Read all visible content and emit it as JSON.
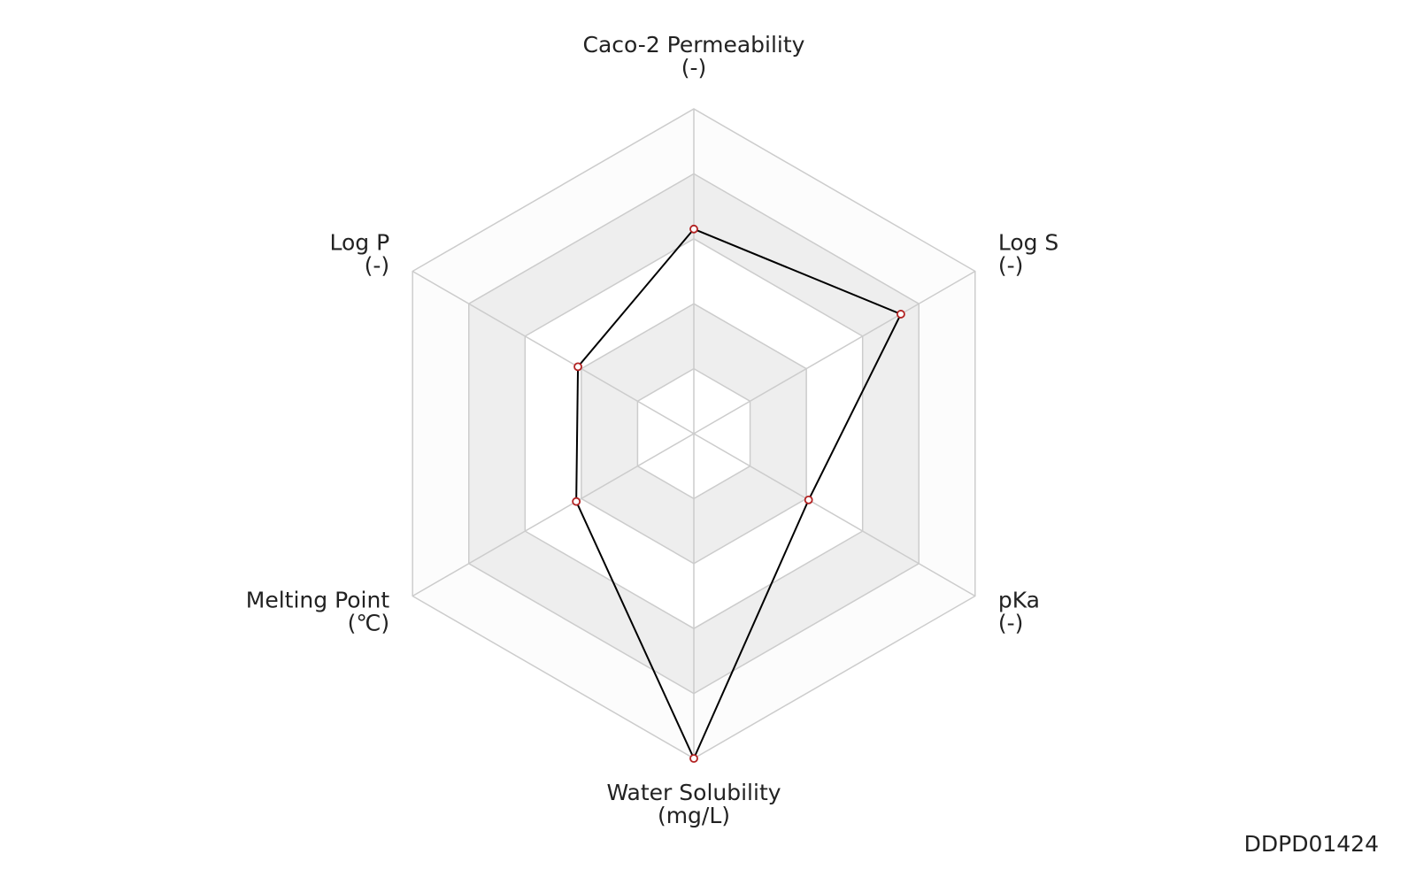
{
  "chart_data": {
    "type": "radar",
    "categories": [
      "Caco-2 Permeability",
      "Log S",
      "pKa",
      "Water Solubility",
      "Melting Point",
      "Log P"
    ],
    "units": [
      "(-)",
      "(-)",
      "(-)",
      "(mg/L)",
      "(℃)",
      "(-)"
    ],
    "values": [
      3.15,
      3.68,
      2.04,
      5,
      2.09,
      2.06
    ],
    "color": "#000000",
    "marker_color": "#b22222",
    "rlim": [
      0,
      5
    ],
    "rticks": [
      1,
      2,
      3,
      4,
      5
    ],
    "grid": true
  },
  "footer": "DDPD01424"
}
